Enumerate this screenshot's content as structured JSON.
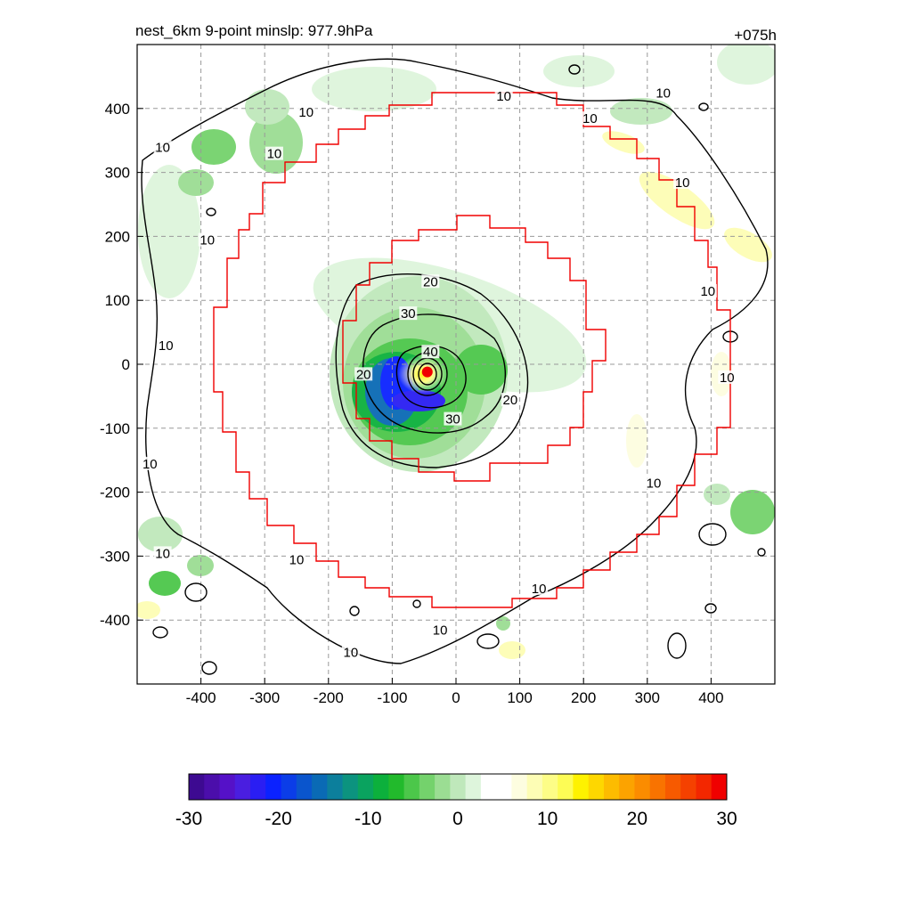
{
  "chart_data": {
    "type": "heatmap",
    "title": "nest_6km  9-point minslp: 977.9hPa",
    "forecast_hour": "+075h",
    "xlim": [
      -500,
      500
    ],
    "ylim": [
      -500,
      500
    ],
    "xticks": [
      -400,
      -300,
      -200,
      -100,
      0,
      100,
      200,
      300,
      400
    ],
    "yticks": [
      -400,
      -300,
      -200,
      -100,
      0,
      100,
      200,
      300,
      400
    ],
    "grid": true,
    "colorbar": {
      "min": -30,
      "max": 30,
      "ticks": [
        -30,
        -20,
        -10,
        0,
        10,
        20,
        30
      ],
      "colors": [
        "#3d0a91",
        "#4b0eab",
        "#5511c8",
        "#4a1ee0",
        "#2a1ef3",
        "#0b22ff",
        "#0b3de8",
        "#0a55cd",
        "#0a6ab5",
        "#0c7f9c",
        "#0c937f",
        "#0aa35f",
        "#0cb03c",
        "#22ba2c",
        "#4cc74a",
        "#74d26c",
        "#9bdd93",
        "#bfe8bb",
        "#def5dc",
        "#ffffff",
        "#ffffff",
        "#fdfde0",
        "#fdfdb5",
        "#fdfd87",
        "#fdfc55",
        "#fef200",
        "#fed700",
        "#fdbc00",
        "#fca300",
        "#fb8c00",
        "#f97300",
        "#f75a00",
        "#f54100",
        "#f32700",
        "#f00000"
      ]
    },
    "pressure_minimum_location": [
      -45,
      -12
    ],
    "contour_levels": [
      10,
      20,
      30,
      40
    ],
    "contour_labels": [
      {
        "x": -460,
        "y": 335,
        "text": "10"
      },
      {
        "x": -390,
        "y": 190,
        "text": "10"
      },
      {
        "x": -455,
        "y": 25,
        "text": "10"
      },
      {
        "x": -480,
        "y": -160,
        "text": "10"
      },
      {
        "x": -460,
        "y": -300,
        "text": "10"
      },
      {
        "x": -250,
        "y": -310,
        "text": "10"
      },
      {
        "x": -165,
        "y": -455,
        "text": "10"
      },
      {
        "x": -25,
        "y": -420,
        "text": "10"
      },
      {
        "x": 130,
        "y": -355,
        "text": "10"
      },
      {
        "x": 310,
        "y": -190,
        "text": "10"
      },
      {
        "x": 425,
        "y": -25,
        "text": "10"
      },
      {
        "x": 395,
        "y": 110,
        "text": "10"
      },
      {
        "x": 355,
        "y": 280,
        "text": "10"
      },
      {
        "x": 325,
        "y": 420,
        "text": "10"
      },
      {
        "x": 210,
        "y": 380,
        "text": "10"
      },
      {
        "x": 75,
        "y": 415,
        "text": "10"
      },
      {
        "x": -235,
        "y": 390,
        "text": "10"
      },
      {
        "x": -285,
        "y": 325,
        "text": "10"
      },
      {
        "x": -40,
        "y": 125,
        "text": "20"
      },
      {
        "x": 85,
        "y": -60,
        "text": "20"
      },
      {
        "x": -145,
        "y": -20,
        "text": "20"
      },
      {
        "x": -75,
        "y": 75,
        "text": "30"
      },
      {
        "x": -5,
        "y": -90,
        "text": "30"
      },
      {
        "x": -40,
        "y": 15,
        "text": "40"
      }
    ]
  }
}
